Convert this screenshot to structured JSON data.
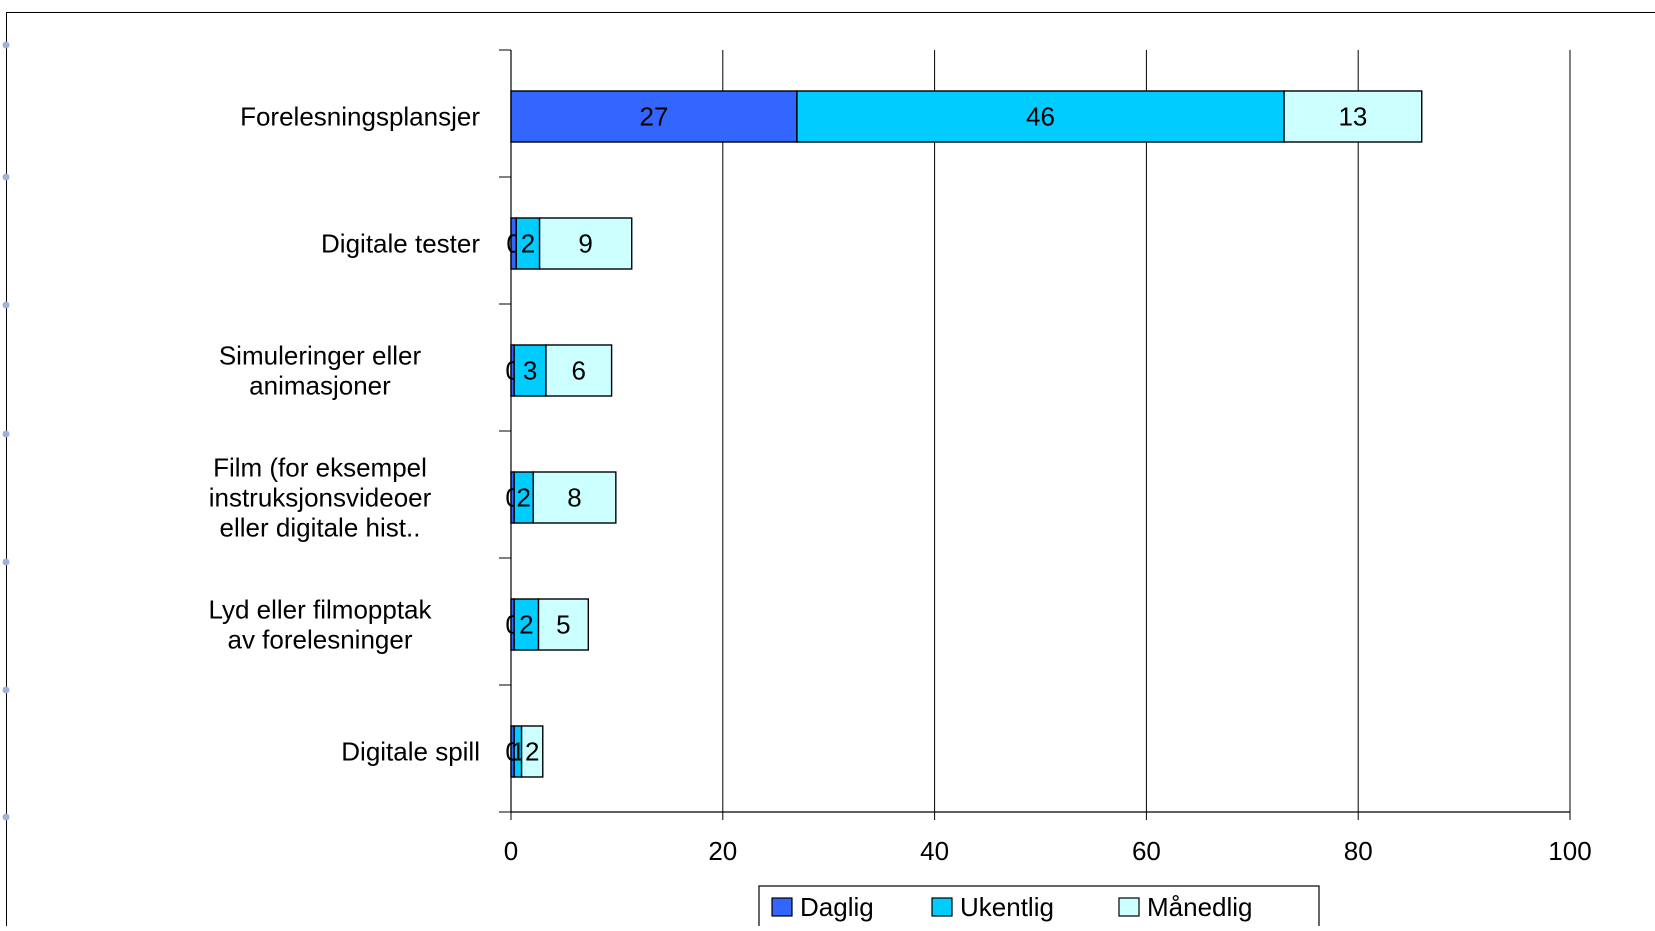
{
  "chart_data": {
    "type": "bar",
    "orientation": "horizontal",
    "stacked": true,
    "categories": [
      "Forelesningsplansjer",
      "Digitale tester",
      "Simuleringer eller animasjoner",
      "Film (for eksempel instruksjonsvideoer eller digitale hist..",
      "Lyd eller filmopptak av forelesninger",
      "Digitale spill"
    ],
    "category_lines": [
      [
        "Forelesningsplansjer"
      ],
      [
        "Digitale tester"
      ],
      [
        "Simuleringer eller",
        "animasjoner"
      ],
      [
        "Film (for eksempel",
        "instruksjonsvideoer",
        "eller digitale hist.."
      ],
      [
        "Lyd eller filmopptak",
        "av forelesninger"
      ],
      [
        "Digitale spill"
      ]
    ],
    "series": [
      {
        "name": "Daglig",
        "values": [
          27,
          0.5,
          0.3,
          0.3,
          0.3,
          0.3
        ],
        "labels": [
          "27",
          "0",
          "0",
          "0",
          "0",
          "0"
        ]
      },
      {
        "name": "Ukentlig",
        "values": [
          46,
          2.2,
          3,
          1.8,
          2.3,
          0.7
        ],
        "labels": [
          "46",
          "2",
          "3",
          "2",
          "2",
          "1"
        ]
      },
      {
        "name": "Månedlig",
        "values": [
          13,
          8.7,
          6.2,
          7.8,
          4.7,
          2
        ],
        "labels": [
          "13",
          "9",
          "6",
          "8",
          "5",
          "2"
        ]
      }
    ],
    "colors": [
      "#3366ff",
      "#00ccff",
      "#ccffff"
    ],
    "xlim": [
      0,
      100
    ],
    "xticks": [
      "0",
      "20",
      "40",
      "60",
      "80",
      "100"
    ],
    "grid": true,
    "legend_position": "bottom",
    "title": "",
    "xlabel": "",
    "ylabel": ""
  }
}
